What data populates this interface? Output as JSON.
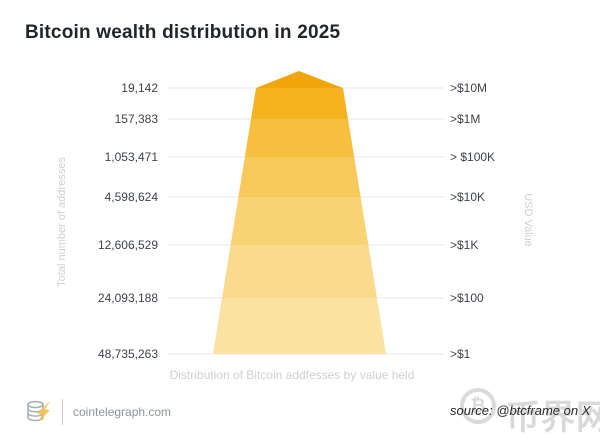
{
  "chart_data": {
    "type": "pyramid",
    "title": "Bitcoin wealth distribution in 2025",
    "xlabel": "Distribution of Bitcoin addfesses by value held",
    "left_axis_label": "Total number of addresses",
    "right_axis_label": "USD Value",
    "legend_position": "none",
    "grid": true,
    "gridline_color": "#e9e9e9",
    "tiers": [
      {
        "addresses": "19,142",
        "addresses_value": 19142,
        "usd_value": ">$10M"
      },
      {
        "addresses": "157,383",
        "addresses_value": 157383,
        "usd_value": ">$1M"
      },
      {
        "addresses": "1,053,471",
        "addresses_value": 1053471,
        "usd_value": "> $100K"
      },
      {
        "addresses": "4,598,624",
        "addresses_value": 4598624,
        "usd_value": ">$10K"
      },
      {
        "addresses": "12,606,529",
        "addresses_value": 12606529,
        "usd_value": ">$1K"
      },
      {
        "addresses": "24,093,188",
        "addresses_value": 24093188,
        "usd_value": ">$100"
      },
      {
        "addresses": "48,735,263",
        "addresses_value": 48735263,
        "usd_value": ">$1"
      }
    ],
    "band_colors": [
      "#F1A50B",
      "#F5B41F",
      "#F6BF3E",
      "#F7C95A",
      "#F9D274",
      "#FADA8D",
      "#FBE2A1"
    ]
  },
  "footer": {
    "site": "cointelegraph.com",
    "source": "source: @btcframe on X",
    "watermark_symbol": "₿",
    "watermark_text": "币界网"
  }
}
